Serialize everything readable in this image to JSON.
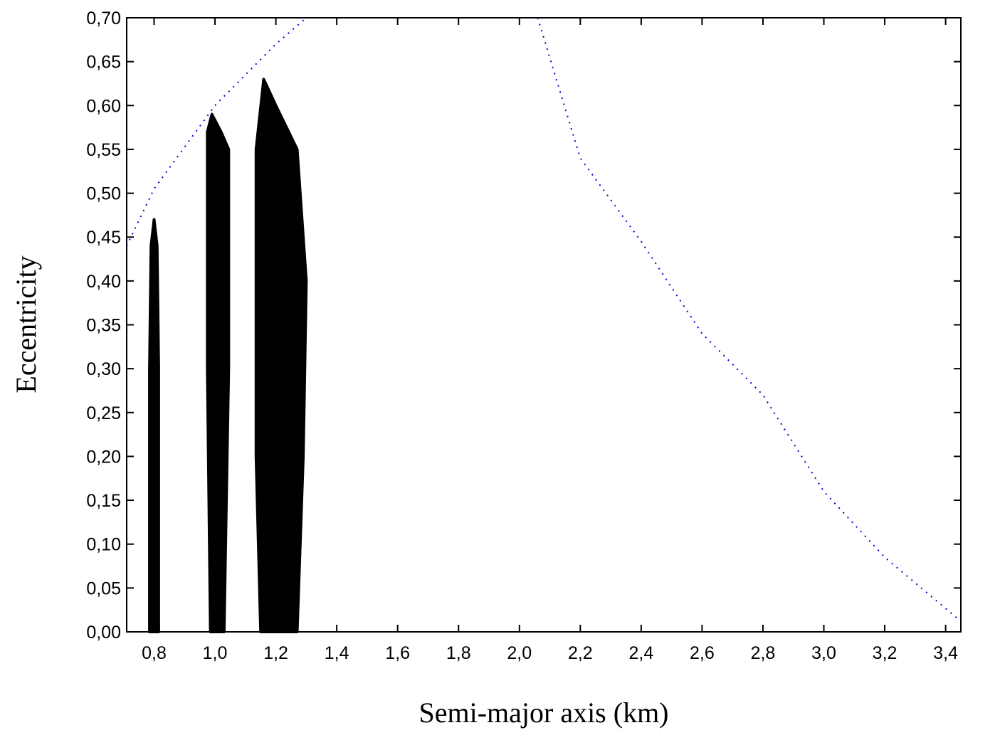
{
  "chart_data": {
    "type": "scatter",
    "x_label": "Semi-major axis (km)",
    "y_label": "Eccentricity",
    "xlim": [
      0.71,
      3.45
    ],
    "ylim": [
      0,
      0.7
    ],
    "xticks": [
      {
        "value": 0.8,
        "label": "0,8"
      },
      {
        "value": 1.0,
        "label": "1,0"
      },
      {
        "value": 1.2,
        "label": "1,2"
      },
      {
        "value": 1.4,
        "label": "1,4"
      },
      {
        "value": 1.6,
        "label": "1,6"
      },
      {
        "value": 1.8,
        "label": "1,8"
      },
      {
        "value": 2.0,
        "label": "2,0"
      },
      {
        "value": 2.2,
        "label": "2,2"
      },
      {
        "value": 2.4,
        "label": "2,4"
      },
      {
        "value": 2.6,
        "label": "2,6"
      },
      {
        "value": 2.8,
        "label": "2,8"
      },
      {
        "value": 3.0,
        "label": "3,0"
      },
      {
        "value": 3.2,
        "label": "3,2"
      },
      {
        "value": 3.4,
        "label": "3,4"
      }
    ],
    "yticks": [
      {
        "value": 0,
        "label": "0,00"
      },
      {
        "value": 0.05,
        "label": "0,05"
      },
      {
        "value": 0.1,
        "label": "0,10"
      },
      {
        "value": 0.15,
        "label": "0,15"
      },
      {
        "value": 0.2,
        "label": "0,20"
      },
      {
        "value": 0.25,
        "label": "0,25"
      },
      {
        "value": 0.3,
        "label": "0,30"
      },
      {
        "value": 0.35,
        "label": "0,35"
      },
      {
        "value": 0.4,
        "label": "0,40"
      },
      {
        "value": 0.45,
        "label": "0,45"
      },
      {
        "value": 0.5,
        "label": "0,50"
      },
      {
        "value": 0.55,
        "label": "0,55"
      },
      {
        "value": 0.6,
        "label": "0,60"
      },
      {
        "value": 0.65,
        "label": "0,65"
      },
      {
        "value": 0.7,
        "label": "0,70"
      }
    ],
    "series": [
      {
        "type": "area",
        "color": "#000000",
        "x": [
          0.785,
          0.785,
          0.79,
          0.8,
          0.81,
          0.815,
          0.815
        ],
        "values": [
          0,
          0.3,
          0.44,
          0.47,
          0.44,
          0.3,
          0
        ]
      },
      {
        "type": "area",
        "color": "#000000",
        "x": [
          0.985,
          0.975,
          0.975,
          0.99,
          1.02,
          1.045,
          1.045,
          1.03
        ],
        "values": [
          0,
          0.3,
          0.57,
          0.59,
          0.57,
          0.55,
          0.3,
          0
        ]
      },
      {
        "type": "area",
        "color": "#000000",
        "x": [
          1.15,
          1.135,
          1.135,
          1.16,
          1.2,
          1.27,
          1.3,
          1.29,
          1.27
        ],
        "values": [
          0,
          0.2,
          0.55,
          0.63,
          0.6,
          0.55,
          0.4,
          0.2,
          0
        ]
      },
      {
        "type": "line",
        "color": "#0000cc",
        "x": [
          0.71,
          0.8,
          1.0,
          1.2,
          1.3
        ],
        "values": [
          0.44,
          0.505,
          0.6,
          0.67,
          0.7
        ]
      },
      {
        "type": "line",
        "color": "#0000cc",
        "x": [
          2.06,
          2.2,
          2.4,
          2.6,
          2.8,
          3.0,
          3.2,
          3.44
        ],
        "values": [
          0.7,
          0.54,
          0.445,
          0.34,
          0.27,
          0.16,
          0.085,
          0.015
        ]
      }
    ]
  }
}
